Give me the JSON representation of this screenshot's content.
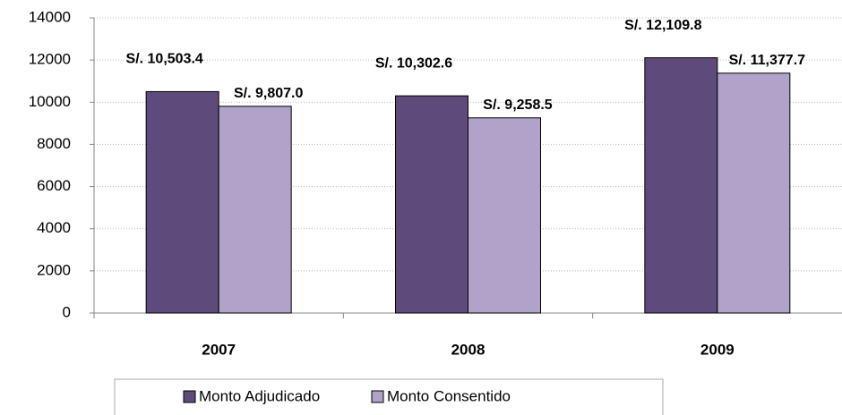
{
  "chart_data": {
    "type": "bar",
    "categories": [
      "2007",
      "2008",
      "2009"
    ],
    "series": [
      {
        "name": "Monto Adjudicado",
        "color": "#5f4b7b",
        "values": [
          10503.4,
          10302.6,
          12109.8
        ],
        "value_labels": [
          "S/. 10,503.4",
          "S/. 10,302.6",
          "S/. 12,109.8"
        ]
      },
      {
        "name": "Monto Consentido",
        "color": "#b0a2c8",
        "values": [
          9807.0,
          9258.5,
          11377.7
        ],
        "value_labels": [
          "S/. 9,807.0",
          "S/. 9,258.5",
          "S/. 11,377.7"
        ]
      }
    ],
    "ylim": [
      0,
      14000
    ],
    "yticks": [
      0,
      2000,
      4000,
      6000,
      8000,
      10000,
      12000,
      14000
    ],
    "grid": true,
    "legend": "bottom"
  }
}
